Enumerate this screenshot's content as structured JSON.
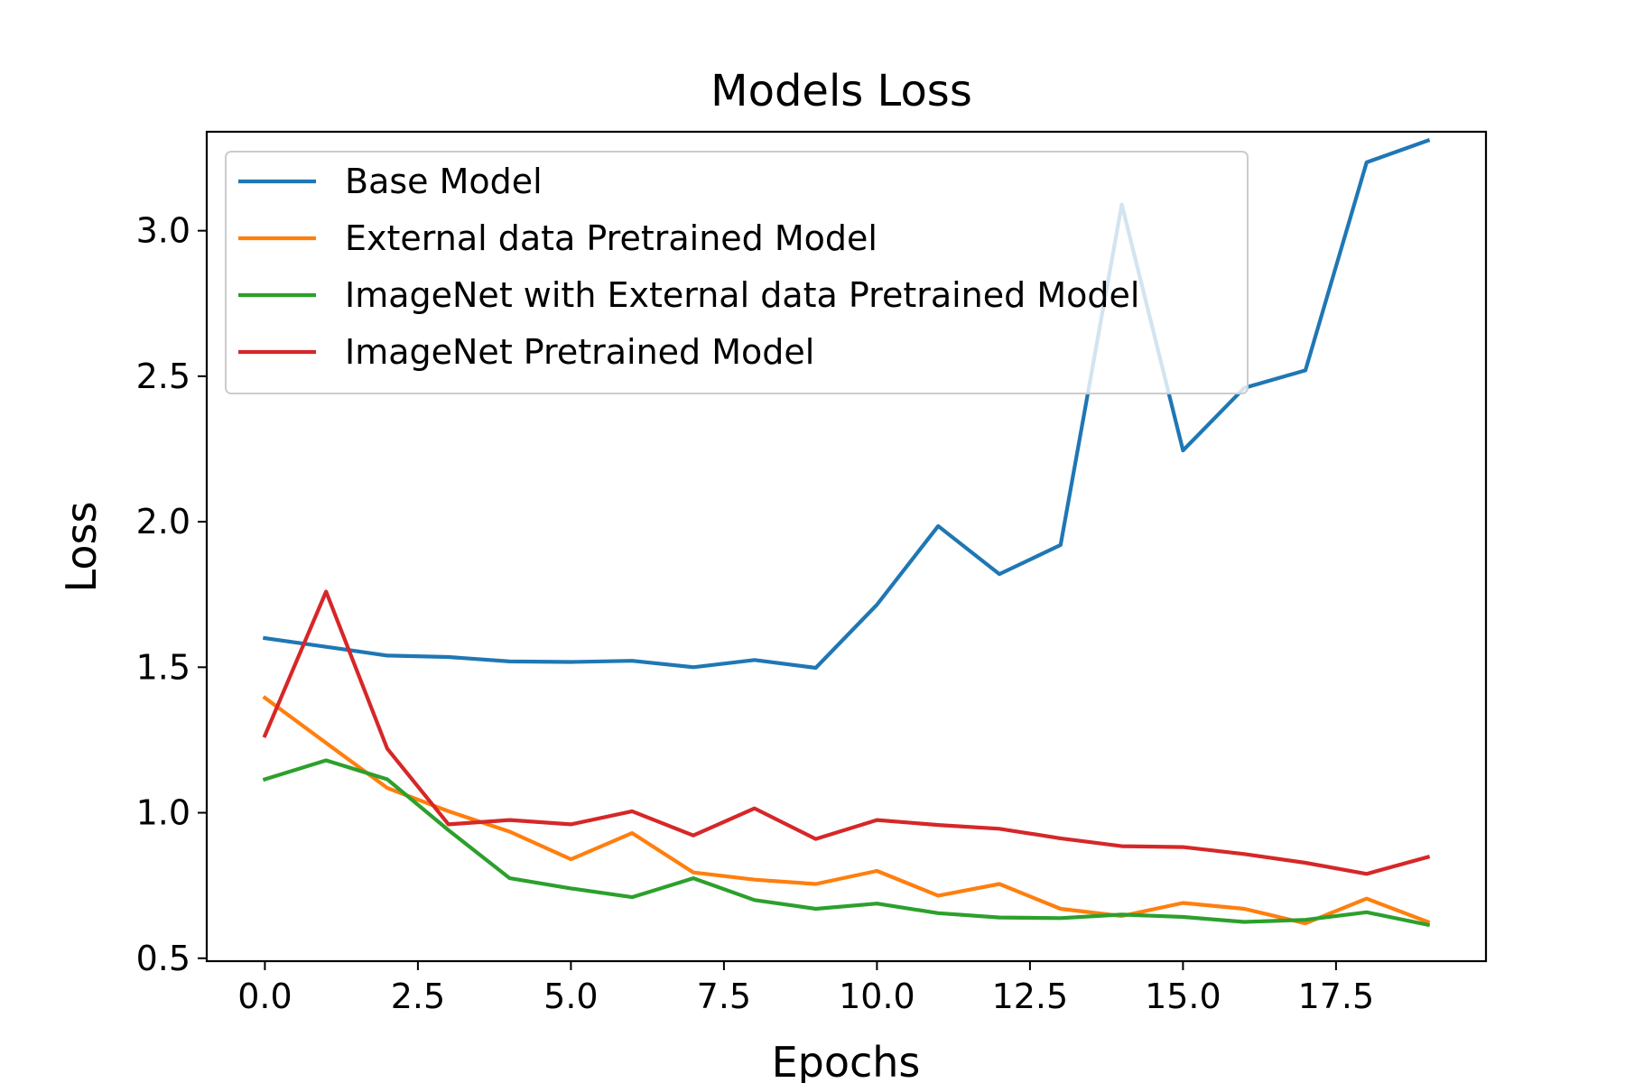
{
  "chart_data": {
    "type": "line",
    "title": "Models Loss",
    "xlabel": "Epochs",
    "ylabel": "Loss",
    "xlim": [
      -0.95,
      19.95
    ],
    "ylim": [
      0.49,
      3.34
    ],
    "xticks": [
      0.0,
      2.5,
      5.0,
      7.5,
      10.0,
      12.5,
      15.0,
      17.5
    ],
    "xtick_labels": [
      "0.0",
      "2.5",
      "5.0",
      "7.5",
      "10.0",
      "12.5",
      "15.0",
      "17.5"
    ],
    "yticks": [
      0.5,
      1.0,
      1.5,
      2.0,
      2.5,
      3.0
    ],
    "ytick_labels": [
      "0.5",
      "1.0",
      "1.5",
      "2.0",
      "2.5",
      "3.0"
    ],
    "grid": false,
    "legend_position": "top-left",
    "x": [
      0,
      1,
      2,
      3,
      4,
      5,
      6,
      7,
      8,
      9,
      10,
      11,
      12,
      13,
      14,
      15,
      16,
      17,
      18,
      19
    ],
    "series": [
      {
        "name": "Base Model",
        "color": "#1f77b4",
        "values": [
          1.6,
          1.57,
          1.54,
          1.535,
          1.52,
          1.518,
          1.522,
          1.5,
          1.525,
          1.498,
          1.715,
          1.985,
          1.82,
          1.92,
          3.09,
          2.245,
          2.46,
          2.52,
          3.235,
          3.31
        ]
      },
      {
        "name": "External data Pretrained Model",
        "color": "#ff7f0e",
        "values": [
          1.395,
          1.24,
          1.085,
          1.005,
          0.935,
          0.84,
          0.93,
          0.795,
          0.77,
          0.755,
          0.8,
          0.715,
          0.755,
          0.67,
          0.645,
          0.69,
          0.67,
          0.62,
          0.705,
          0.625
        ]
      },
      {
        "name": "ImageNet with External data Pretrained Model",
        "color": "#2ca02c",
        "values": [
          1.115,
          1.18,
          1.115,
          0.94,
          0.775,
          0.74,
          0.71,
          0.775,
          0.7,
          0.67,
          0.688,
          0.655,
          0.64,
          0.638,
          0.65,
          0.642,
          0.625,
          0.632,
          0.658,
          0.615
        ]
      },
      {
        "name": "ImageNet Pretrained Model",
        "color": "#d62728",
        "values": [
          1.265,
          1.76,
          1.22,
          0.96,
          0.975,
          0.96,
          1.005,
          0.922,
          1.015,
          0.91,
          0.975,
          0.958,
          0.945,
          0.912,
          0.885,
          0.882,
          0.858,
          0.828,
          0.79,
          0.848
        ]
      }
    ]
  }
}
